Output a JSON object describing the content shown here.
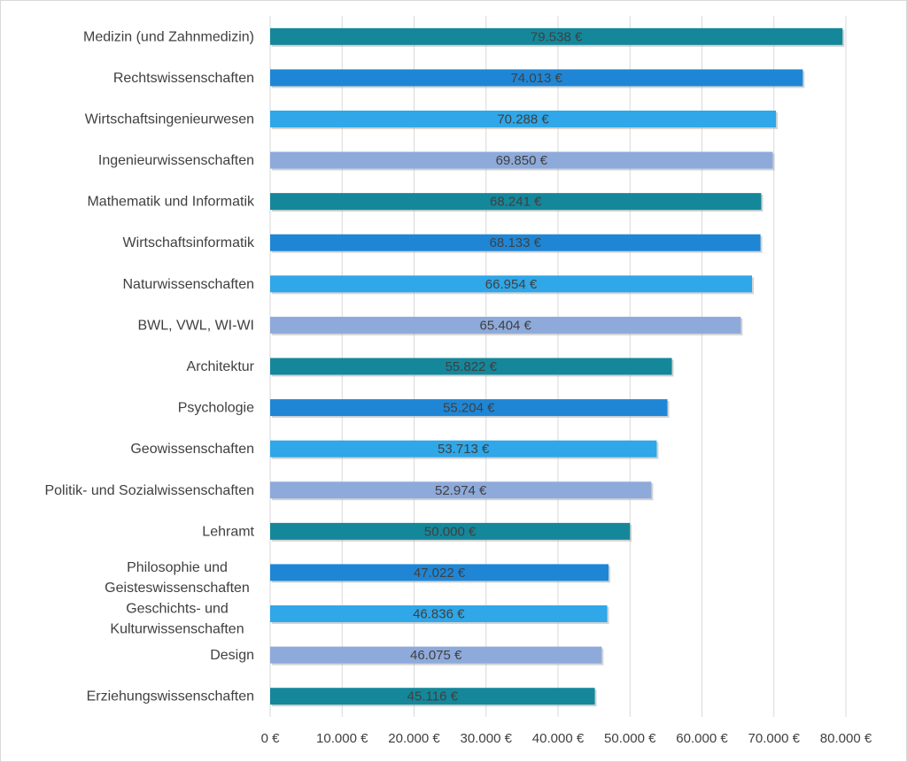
{
  "chart_data": {
    "type": "bar",
    "orientation": "horizontal",
    "title": "",
    "xlabel": "",
    "ylabel": "",
    "xlim": [
      0,
      80000
    ],
    "grid": "vertical",
    "legend": "none",
    "categories": [
      "Medizin (und Zahnmedizin)",
      "Rechtswissenschaften",
      "Wirtschaftsingenieurwesen",
      "Ingenieurwissenschaften",
      "Mathematik und Informatik",
      "Wirtschaftsinformatik",
      "Naturwissenschaften",
      "BWL, VWL, WI-WI",
      "Architektur",
      "Psychologie",
      "Geowissenschaften",
      "Politik- und Sozialwissenschaften",
      "Lehramt",
      "Philosophie und Geisteswissenschaften",
      "Geschichts- und Kulturwissenschaften",
      "Design",
      "Erziehungswissenschaften"
    ],
    "values": [
      79538,
      74013,
      70288,
      69850,
      68241,
      68133,
      66954,
      65404,
      55822,
      55204,
      53713,
      52974,
      50000,
      47022,
      46836,
      46075,
      45116
    ],
    "data_labels": [
      "79.538 €",
      "74.013 €",
      "70.288 €",
      "69.850 €",
      "68.241 €",
      "68.133 €",
      "66.954 €",
      "65.404 €",
      "55.822 €",
      "55.204 €",
      "53.713 €",
      "52.974 €",
      "50.000 €",
      "47.022 €",
      "46.836 €",
      "46.075 €",
      "45.116 €"
    ],
    "tick_labels": [
      "0 €",
      "10.000 €",
      "20.000 €",
      "30.000 €",
      "40.000 €",
      "50.000 €",
      "60.000 €",
      "70.000 €",
      "80.000 €"
    ],
    "colors": [
      "#14879a",
      "#1f86d6",
      "#2fa7e8",
      "#8eaadb"
    ],
    "gridline_color": "#d9d9d9"
  }
}
